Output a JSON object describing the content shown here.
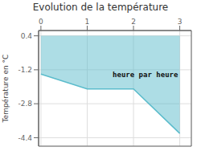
{
  "chart_data": {
    "type": "line",
    "title": "Evolution de la température",
    "ylabel": "Température en °C",
    "x": [
      0,
      1,
      2,
      3
    ],
    "values": [
      -1.4,
      -2.1,
      -2.1,
      -4.2
    ],
    "fill_top": 0.4,
    "color": "#5bbccc",
    "xlim": [
      -0.05,
      3.25
    ],
    "ylim": [
      -4.8,
      0.65
    ],
    "xticks": [
      0,
      1,
      2,
      3
    ],
    "yticks": [
      0.4,
      -1.2,
      -2.8,
      -4.4
    ],
    "grid": true,
    "annotations": [
      {
        "text": "heure par heure",
        "x": 1.55,
        "y": -1.3
      }
    ]
  }
}
